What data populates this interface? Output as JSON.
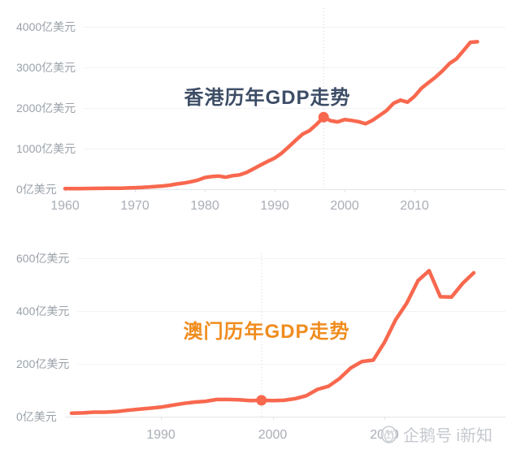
{
  "page": {
    "background": "#ffffff"
  },
  "watermark": {
    "label": "企鹅号 i新知",
    "color": "#c5c9cf"
  },
  "chart_data": [
    {
      "type": "line",
      "title": "香港历年GDP走势",
      "title_color": "#3d4d66",
      "line_color": "#f8684e",
      "unit": "亿美元",
      "grid": "horizontal",
      "legend": "none",
      "y_tick_values": [
        0,
        1000,
        2000,
        3000,
        4000
      ],
      "y_tick_labels": [
        "0亿美元",
        "1000亿美元",
        "2000亿美元",
        "3000亿美元",
        "4000亿美元"
      ],
      "x_ticks": [
        1960,
        1970,
        1980,
        1990,
        2000,
        2010
      ],
      "xlim": [
        1960,
        2019
      ],
      "ylim": [
        0,
        4400
      ],
      "marker": {
        "year": 1997,
        "value": 1774
      },
      "years": [
        1960,
        1961,
        1962,
        1963,
        1964,
        1965,
        1966,
        1967,
        1968,
        1969,
        1970,
        1971,
        1972,
        1973,
        1974,
        1975,
        1976,
        1977,
        1978,
        1979,
        1980,
        1981,
        1982,
        1983,
        1984,
        1985,
        1986,
        1987,
        1988,
        1989,
        1990,
        1991,
        1992,
        1993,
        1994,
        1995,
        1996,
        1997,
        1998,
        1999,
        2000,
        2001,
        2002,
        2003,
        2004,
        2005,
        2006,
        2007,
        2008,
        2009,
        2010,
        2011,
        2012,
        2013,
        2014,
        2015,
        2016,
        2017,
        2018,
        2019
      ],
      "values": [
        13,
        14,
        16,
        18,
        20,
        22,
        23,
        25,
        27,
        31,
        38,
        45,
        54,
        69,
        80,
        100,
        130,
        151,
        183,
        225,
        289,
        311,
        324,
        296,
        334,
        355,
        416,
        507,
        599,
        686,
        769,
        889,
        1044,
        1203,
        1359,
        1446,
        1600,
        1774,
        1687,
        1659,
        1716,
        1695,
        1664,
        1612,
        1698,
        1816,
        1936,
        2116,
        2193,
        2143,
        2286,
        2488,
        2626,
        2758,
        2914,
        3093,
        3209,
        3412,
        3617,
        3631
      ]
    },
    {
      "type": "line",
      "title": "澳门历年GDP走势",
      "title_color": "#f08c1e",
      "line_color": "#f8684e",
      "unit": "亿美元",
      "grid": "horizontal",
      "legend": "none",
      "y_tick_values": [
        0,
        200,
        400,
        600
      ],
      "y_tick_labels": [
        "0亿美元",
        "200亿美元",
        "400亿美元",
        "600亿美元"
      ],
      "x_ticks": [
        1990,
        2000,
        2010
      ],
      "xlim": [
        1982,
        2018
      ],
      "ylim": [
        0,
        660
      ],
      "marker": {
        "year": 1999,
        "value": 62
      },
      "years": [
        1982,
        1983,
        1984,
        1985,
        1986,
        1987,
        1988,
        1989,
        1990,
        1991,
        1992,
        1993,
        1994,
        1995,
        1996,
        1997,
        1998,
        1999,
        2000,
        2001,
        2002,
        2003,
        2004,
        2005,
        2006,
        2007,
        2008,
        2009,
        2010,
        2011,
        2012,
        2013,
        2014,
        2015,
        2016,
        2017,
        2018
      ],
      "values": [
        13,
        14,
        17,
        17,
        19,
        24,
        28,
        32,
        36,
        43,
        50,
        55,
        58,
        65,
        65,
        64,
        61,
        62,
        61,
        62,
        68,
        79,
        103,
        115,
        145,
        185,
        209,
        214,
        281,
        367,
        430,
        515,
        553,
        454,
        453,
        505,
        545
      ]
    }
  ]
}
